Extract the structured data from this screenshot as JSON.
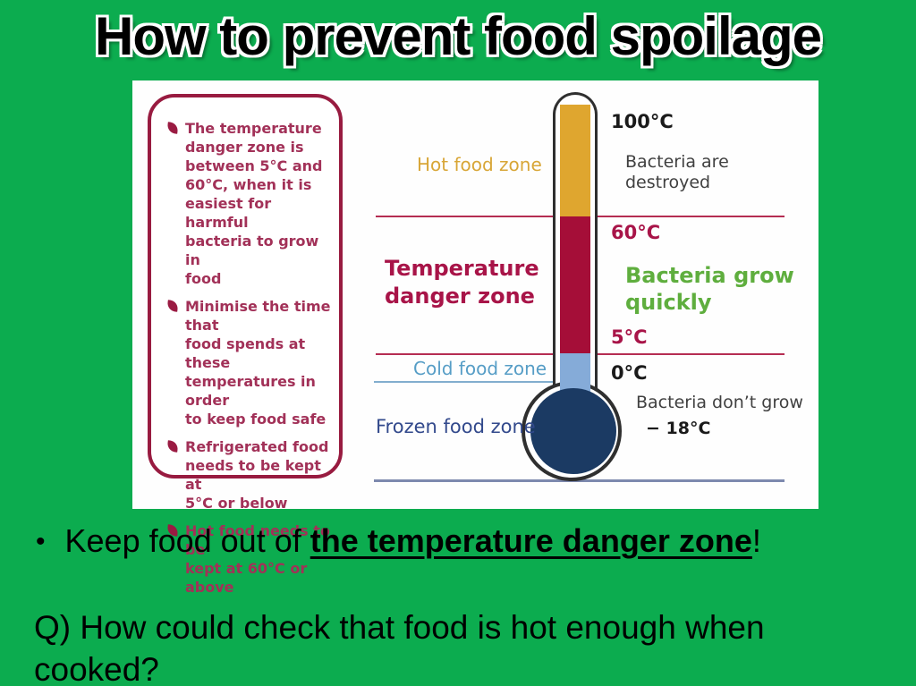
{
  "title": "How to prevent food spoilage",
  "footer": {
    "bullet_char": "•",
    "keep_prefix": "Keep food out of ",
    "keep_emphasis": "the temperature danger zone",
    "keep_suffix": "!",
    "question": "Q) How could check that food is hot enough when\ncooked?"
  },
  "diagram": {
    "info_box": {
      "bullets": [
        {
          "text": "The temperature\ndanger zone is\nbetween 5°C and\n60°C, when it is\neasiest for harmful\nbacteria to grow in\nfood"
        },
        {
          "text": "Minimise the time that\nfood spends at these\ntemperatures in order\nto keep food safe"
        },
        {
          "text": "Refrigerated food\nneeds to be kept at\n5°C or below"
        },
        {
          "text": "Hot food needs to be\nkept at 60°C or above"
        }
      ]
    },
    "thermometer": {
      "hot_zone_label": "Hot food zone",
      "danger_zone_label": "Temperature\ndanger zone",
      "cold_zone_label": "Cold food zone",
      "frozen_zone_label": "Frozen food zone",
      "scale": {
        "t100": "100°C",
        "t60": "60°C",
        "t5": "5°C",
        "t0": "0°C",
        "t_minus18": "− 18°C"
      },
      "annotations": {
        "destroyed": "Bacteria are\ndestroyed",
        "grow": "Bacteria grow\nquickly",
        "dont_grow": "Bacteria don’t grow"
      },
      "colors": {
        "hot": "#DFA62F",
        "danger": "#A50E38",
        "cold": "#85ABD8",
        "frozen": "#1B3A63"
      }
    }
  },
  "colors": {
    "slide_bg": "#0CAC4F",
    "info_border": "#981B40",
    "info_text": "#A23158",
    "line_red": "#B52D52",
    "line_cold": "#82AECE",
    "line_base": "#7D89AE"
  }
}
